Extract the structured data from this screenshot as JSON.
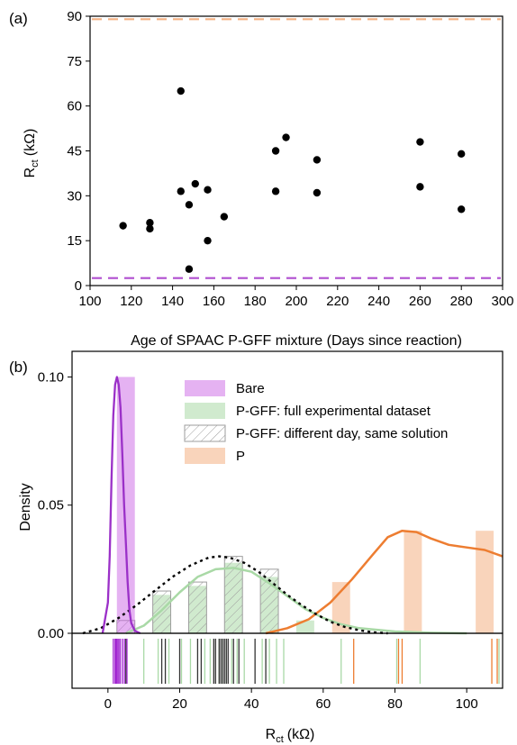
{
  "chart_data": [
    {
      "panel": "(a)",
      "type": "scatter",
      "xlabel": "Age of SPAAC P-GFF mixture (Days since reaction)",
      "ylabel_main": "R",
      "ylabel_sub": "ct",
      "ylabel_unit": "(kΩ)",
      "xlim": [
        100,
        300
      ],
      "ylim": [
        0,
        90
      ],
      "xticks": [
        100,
        120,
        140,
        160,
        180,
        200,
        220,
        240,
        260,
        280,
        300
      ],
      "yticks": [
        0,
        15,
        30,
        45,
        60,
        75,
        90
      ],
      "reference_lines": [
        {
          "y": 89,
          "color": "#f4b183"
        },
        {
          "y": 2.5,
          "color": "#b04fd0"
        }
      ],
      "points": [
        {
          "x": 116,
          "y": 20
        },
        {
          "x": 129,
          "y": 21
        },
        {
          "x": 129,
          "y": 19
        },
        {
          "x": 144,
          "y": 65
        },
        {
          "x": 144,
          "y": 31.5
        },
        {
          "x": 148,
          "y": 27
        },
        {
          "x": 148,
          "y": 5.5
        },
        {
          "x": 151,
          "y": 34
        },
        {
          "x": 157,
          "y": 32
        },
        {
          "x": 157,
          "y": 15
        },
        {
          "x": 165,
          "y": 23
        },
        {
          "x": 190,
          "y": 45
        },
        {
          "x": 190,
          "y": 31.5
        },
        {
          "x": 195,
          "y": 49.5
        },
        {
          "x": 210,
          "y": 42
        },
        {
          "x": 210,
          "y": 31
        },
        {
          "x": 260,
          "y": 48
        },
        {
          "x": 260,
          "y": 33
        },
        {
          "x": 280,
          "y": 44
        },
        {
          "x": 280,
          "y": 25.5
        }
      ]
    },
    {
      "panel": "(b)",
      "type": "histogram",
      "xlabel_main": "R",
      "xlabel_sub": "ct",
      "xlabel_unit": "(kΩ)",
      "ylabel": "Density",
      "xlim": [
        -10,
        110
      ],
      "ylim": [
        0,
        0.11
      ],
      "xticks": [
        0,
        20,
        40,
        60,
        80,
        100
      ],
      "yticks": [
        0.0,
        0.05,
        0.1
      ],
      "ytick_labels": [
        "0.00",
        "0.05",
        "0.10"
      ],
      "legend_position": "top",
      "series": [
        {
          "name": "Bare",
          "color": "#cc66e6",
          "bars": [
            {
              "x0": 2.5,
              "x1": 7.5,
              "h": 0.1
            }
          ],
          "curve": [
            [
              -1.5,
              0
            ],
            [
              0,
              0.012
            ],
            [
              0.5,
              0.03
            ],
            [
              1,
              0.06
            ],
            [
              1.5,
              0.085
            ],
            [
              2,
              0.097
            ],
            [
              2.5,
              0.1
            ],
            [
              3,
              0.097
            ],
            [
              3.5,
              0.088
            ],
            [
              4,
              0.07
            ],
            [
              4.5,
              0.05
            ],
            [
              5,
              0.035
            ],
            [
              5.5,
              0.02
            ],
            [
              6,
              0.009
            ],
            [
              6.5,
              0.004
            ],
            [
              7.5,
              0.001
            ],
            [
              9,
              0
            ]
          ],
          "rug": [
            1.5,
            2,
            2.3,
            2.6,
            3,
            3.4,
            4,
            4.6,
            5.3
          ]
        },
        {
          "name": "P-GFF: full experimental dataset",
          "color": "#a9d9a6",
          "bars": [
            {
              "x0": 12.5,
              "x1": 17.5,
              "h": 0.015
            },
            {
              "x0": 22.5,
              "x1": 27.5,
              "h": 0.0185
            },
            {
              "x0": 32.5,
              "x1": 37.5,
              "h": 0.0275
            },
            {
              "x0": 42.5,
              "x1": 47.5,
              "h": 0.022
            },
            {
              "x0": 52.5,
              "x1": 57.5,
              "h": 0.005
            }
          ],
          "curve": [
            [
              5,
              0
            ],
            [
              10,
              0.003
            ],
            [
              15,
              0.009
            ],
            [
              20,
              0.016
            ],
            [
              25,
              0.022
            ],
            [
              30,
              0.025
            ],
            [
              35,
              0.0255
            ],
            [
              40,
              0.024
            ],
            [
              45,
              0.0195
            ],
            [
              50,
              0.0145
            ],
            [
              55,
              0.0095
            ],
            [
              60,
              0.006
            ],
            [
              65,
              0.0035
            ],
            [
              70,
              0.002
            ],
            [
              80,
              0.0007
            ],
            [
              90,
              0.0002
            ],
            [
              100,
              0
            ]
          ],
          "rug": [
            10,
            14,
            17,
            20.5,
            23,
            27,
            28.5,
            31,
            32,
            33,
            34.5,
            36,
            38,
            43,
            45,
            47,
            49,
            65,
            80.5,
            87,
            109
          ]
        },
        {
          "name": "P-GFF: different day, same solution",
          "color": "#9e9e9e",
          "bars": [
            {
              "x0": 2.5,
              "x1": 7.5,
              "h": 0.005
            },
            {
              "x0": 12.5,
              "x1": 17.5,
              "h": 0.0165
            },
            {
              "x0": 22.5,
              "x1": 27.5,
              "h": 0.02
            },
            {
              "x0": 32.5,
              "x1": 37.5,
              "h": 0.03
            },
            {
              "x0": 42.5,
              "x1": 47.5,
              "h": 0.025
            }
          ],
          "curve": [
            [
              -7,
              0
            ],
            [
              -2,
              0.002
            ],
            [
              3,
              0.006
            ],
            [
              8,
              0.011
            ],
            [
              13,
              0.0165
            ],
            [
              18,
              0.022
            ],
            [
              23,
              0.0265
            ],
            [
              28,
              0.0295
            ],
            [
              31,
              0.03
            ],
            [
              34,
              0.0295
            ],
            [
              38,
              0.0275
            ],
            [
              42,
              0.024
            ],
            [
              46,
              0.0195
            ],
            [
              50,
              0.015
            ],
            [
              54,
              0.011
            ],
            [
              58,
              0.0075
            ],
            [
              62,
              0.0045
            ],
            [
              66,
              0.0025
            ],
            [
              70,
              0.0012
            ],
            [
              74,
              0.0004
            ],
            [
              78,
              0
            ]
          ],
          "rug": [
            5,
            15,
            16,
            20,
            25,
            26,
            29.5,
            30,
            31,
            31.5,
            32,
            32.5,
            33,
            33.5,
            35,
            36.5,
            41,
            44
          ]
        },
        {
          "name": "P",
          "color": "#f4b183",
          "bars": [
            {
              "x0": 62.5,
              "x1": 67.5,
              "h": 0.02
            },
            {
              "x0": 82.5,
              "x1": 87.5,
              "h": 0.04
            },
            {
              "x0": 102.5,
              "x1": 107.5,
              "h": 0.04
            }
          ],
          "curve": [
            [
              44,
              0
            ],
            [
              50,
              0.002
            ],
            [
              56,
              0.0055
            ],
            [
              62,
              0.012
            ],
            [
              68,
              0.021
            ],
            [
              74,
              0.031
            ],
            [
              78,
              0.0375
            ],
            [
              82,
              0.04
            ],
            [
              86,
              0.0395
            ],
            [
              90,
              0.037
            ],
            [
              95,
              0.0345
            ],
            [
              100,
              0.0335
            ],
            [
              105,
              0.0325
            ],
            [
              110,
              0.03
            ]
          ],
          "curve_color": "#ed7d31",
          "rug": [
            68.5,
            81,
            82,
            107,
            108.5
          ]
        }
      ]
    }
  ]
}
